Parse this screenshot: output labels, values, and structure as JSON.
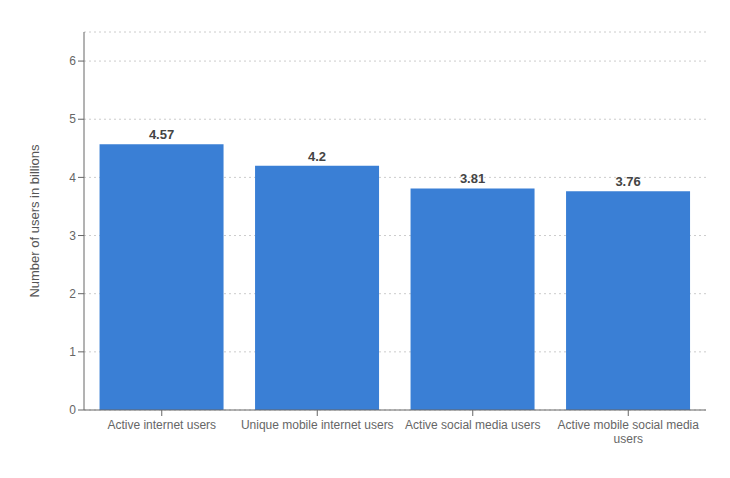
{
  "chart_data": {
    "type": "bar",
    "categories": [
      "Active internet users",
      "Unique mobile internet users",
      "Active social media users",
      "Active mobile social media\nusers"
    ],
    "values": [
      4.57,
      4.2,
      3.81,
      3.76
    ],
    "color": "#3a7fd5",
    "ylabel": "Number of users in billions",
    "ylim": [
      0,
      6.5
    ],
    "yticks": [
      0,
      1,
      2,
      3,
      4,
      5,
      6
    ],
    "grid": true,
    "data_labels": true
  }
}
